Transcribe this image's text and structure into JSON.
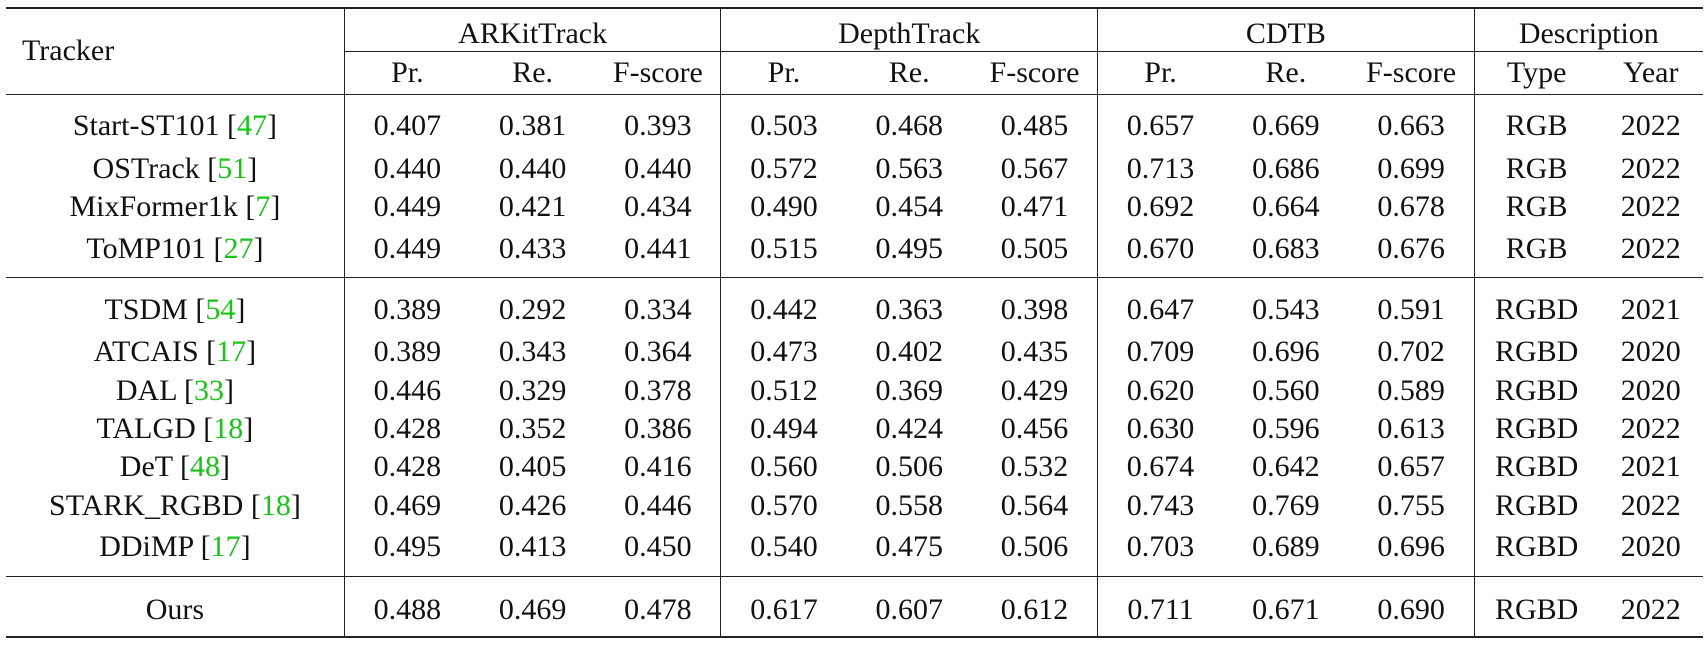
{
  "header": {
    "tracker_label": "Tracker",
    "groups": [
      "ARKitTrack",
      "DepthTrack",
      "CDTB",
      "Description"
    ],
    "metric_labels": [
      "Pr.",
      "Re.",
      "F-score"
    ],
    "description_labels": [
      "Type",
      "Year"
    ]
  },
  "groups_of_rows": [
    [
      {
        "name": "Start-ST101",
        "cite": "47",
        "vals": [
          "0.407",
          "0.381",
          "0.393",
          "0.503",
          "0.468",
          "0.485",
          "0.657",
          "0.669",
          "0.663"
        ],
        "type": "RGB",
        "year": "2022",
        "bold": []
      },
      {
        "name": "OSTrack",
        "cite": "51",
        "vals": [
          "0.440",
          "0.440",
          "0.440",
          "0.572",
          "0.563",
          "0.567",
          "0.713",
          "0.686",
          "0.699"
        ],
        "type": "RGB",
        "year": "2022",
        "bold": []
      },
      {
        "name": "MixFormer1k",
        "cite": "7",
        "vals": [
          "0.449",
          "0.421",
          "0.434",
          "0.490",
          "0.454",
          "0.471",
          "0.692",
          "0.664",
          "0.678"
        ],
        "type": "RGB",
        "year": "2022",
        "bold": []
      },
      {
        "name": "ToMP101",
        "cite": "27",
        "vals": [
          "0.449",
          "0.433",
          "0.441",
          "0.515",
          "0.495",
          "0.505",
          "0.670",
          "0.683",
          "0.676"
        ],
        "type": "RGB",
        "year": "2022",
        "bold": []
      }
    ],
    [
      {
        "name": "TSDM",
        "cite": "54",
        "vals": [
          "0.389",
          "0.292",
          "0.334",
          "0.442",
          "0.363",
          "0.398",
          "0.647",
          "0.543",
          "0.591"
        ],
        "type": "RGBD",
        "year": "2021",
        "bold": []
      },
      {
        "name": "ATCAIS",
        "cite": "17",
        "vals": [
          "0.389",
          "0.343",
          "0.364",
          "0.473",
          "0.402",
          "0.435",
          "0.709",
          "0.696",
          "0.702"
        ],
        "type": "RGBD",
        "year": "2020",
        "bold": []
      },
      {
        "name": "DAL",
        "cite": "33",
        "vals": [
          "0.446",
          "0.329",
          "0.378",
          "0.512",
          "0.369",
          "0.429",
          "0.620",
          "0.560",
          "0.589"
        ],
        "type": "RGBD",
        "year": "2020",
        "bold": []
      },
      {
        "name": "TALGD",
        "cite": "18",
        "vals": [
          "0.428",
          "0.352",
          "0.386",
          "0.494",
          "0.424",
          "0.456",
          "0.630",
          "0.596",
          "0.613"
        ],
        "type": "RGBD",
        "year": "2022",
        "bold": []
      },
      {
        "name": "DeT",
        "cite": "48",
        "vals": [
          "0.428",
          "0.405",
          "0.416",
          "0.560",
          "0.506",
          "0.532",
          "0.674",
          "0.642",
          "0.657"
        ],
        "type": "RGBD",
        "year": "2021",
        "bold": []
      },
      {
        "name": "STARK_RGBD",
        "cite": "18",
        "vals": [
          "0.469",
          "0.426",
          "0.446",
          "0.570",
          "0.558",
          "0.564",
          "0.743",
          "0.769",
          "0.755"
        ],
        "type": "RGBD",
        "year": "2022",
        "bold": [
          6,
          7,
          8
        ]
      },
      {
        "name": "DDiMP",
        "cite": "17",
        "vals": [
          "0.495",
          "0.413",
          "0.450",
          "0.540",
          "0.475",
          "0.506",
          "0.703",
          "0.689",
          "0.696"
        ],
        "type": "RGBD",
        "year": "2020",
        "bold": [
          0
        ]
      }
    ],
    [
      {
        "name": "Ours",
        "cite": "",
        "vals": [
          "0.488",
          "0.469",
          "0.478",
          "0.617",
          "0.607",
          "0.612",
          "0.711",
          "0.671",
          "0.690"
        ],
        "type": "RGBD",
        "year": "2022",
        "bold": [
          1,
          2,
          3,
          4,
          5
        ]
      }
    ]
  ]
}
